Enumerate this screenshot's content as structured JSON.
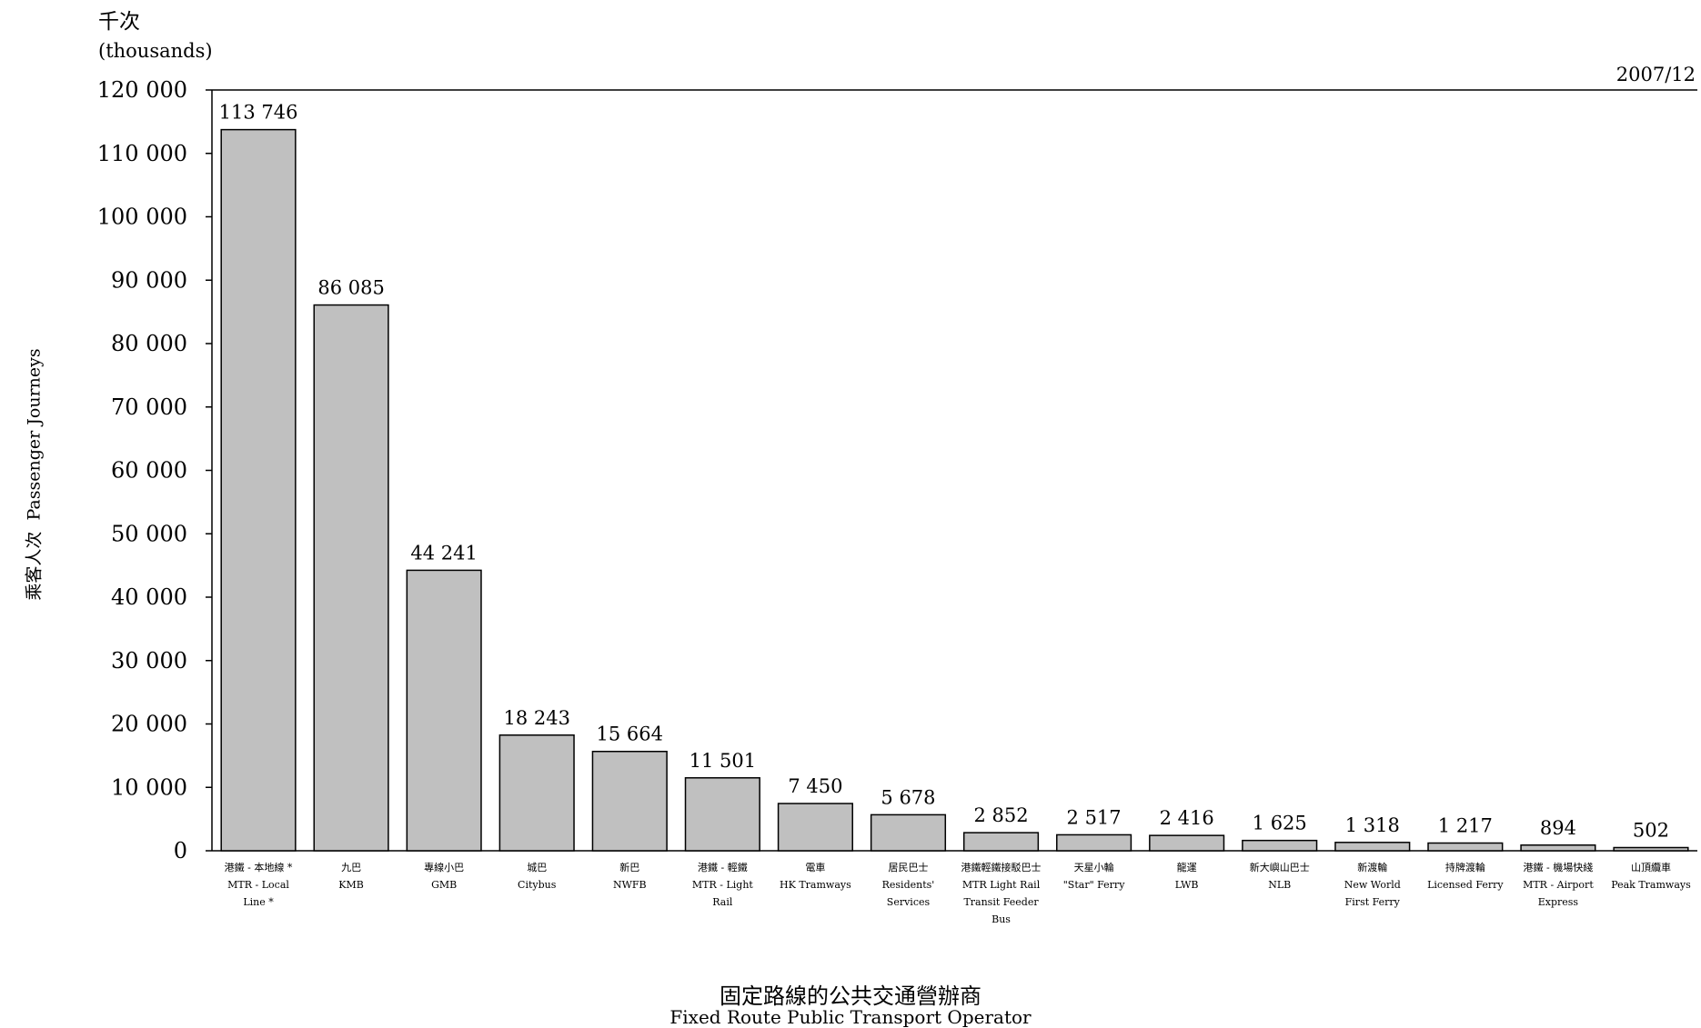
{
  "chart_data": {
    "type": "bar",
    "period": "2007/12",
    "unit_zh": "千次",
    "unit_en": "(thousands)",
    "ylabel_zh": "乘客人次",
    "ylabel_en": "Passenger Journeys",
    "xlabel_zh": "固定路線的公共交通營辦商",
    "xlabel_en": "Fixed Route Public Transport Operator",
    "ylim": [
      0,
      120000
    ],
    "yticks": [
      0,
      10000,
      20000,
      30000,
      40000,
      50000,
      60000,
      70000,
      80000,
      90000,
      100000,
      110000,
      120000
    ],
    "ytick_labels": [
      "0",
      "10 000",
      "20 000",
      "30 000",
      "40 000",
      "50 000",
      "60 000",
      "70 000",
      "80 000",
      "90 000",
      "100 000",
      "110 000",
      "120 000"
    ],
    "bar_color": "#c0c0c0",
    "categories": [
      {
        "zh": "港鐵 - 本地線 *",
        "en": "MTR - Local Line *"
      },
      {
        "zh": "九巴",
        "en": "KMB"
      },
      {
        "zh": "專線小巴",
        "en": "GMB"
      },
      {
        "zh": "城巴",
        "en": "Citybus"
      },
      {
        "zh": "新巴",
        "en": "NWFB"
      },
      {
        "zh": "港鐵 - 輕鐵",
        "en": "MTR - Light Rail"
      },
      {
        "zh": "電車",
        "en": "HK Tramways"
      },
      {
        "zh": "居民巴士",
        "en": "Residents' Services"
      },
      {
        "zh": "港鐵輕鐵接駁巴士",
        "en": "MTR Light Rail Transit Feeder Bus"
      },
      {
        "zh": "天星小輪",
        "en": "\"Star\" Ferry"
      },
      {
        "zh": "龍運",
        "en": "LWB"
      },
      {
        "zh": "新大嶼山巴士",
        "en": "NLB"
      },
      {
        "zh": "新渡輪",
        "en": "New World First Ferry"
      },
      {
        "zh": "持牌渡輪",
        "en": "Licensed Ferry"
      },
      {
        "zh": "港鐵 - 機場快綫",
        "en": "MTR - Airport Express"
      },
      {
        "zh": "山頂纜車",
        "en": "Peak Tramways"
      }
    ],
    "values": [
      113746,
      86085,
      44241,
      18243,
      15664,
      11501,
      7450,
      5678,
      2852,
      2517,
      2416,
      1625,
      1318,
      1217,
      894,
      502
    ],
    "value_labels": [
      "113 746",
      "86 085",
      "44 241",
      "18 243",
      "15 664",
      "11 501",
      "7 450",
      "5 678",
      "2 852",
      "2 517",
      "2 416",
      "1 625",
      "1 318",
      "1 217",
      "894",
      "502"
    ]
  }
}
